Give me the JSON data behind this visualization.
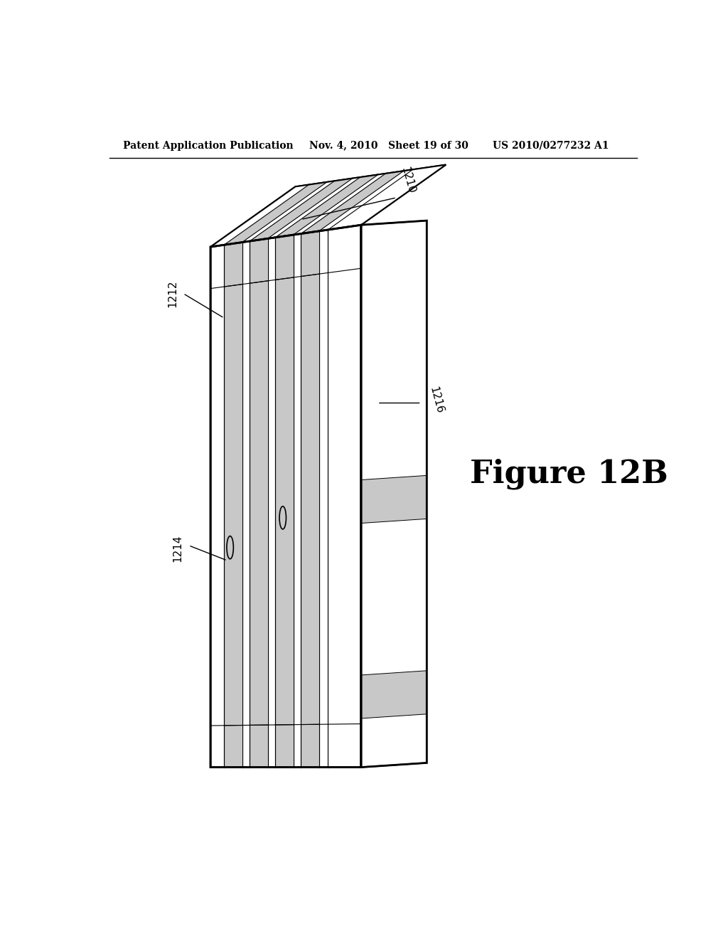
{
  "header_left": "Patent Application Publication",
  "header_mid": "Nov. 4, 2010   Sheet 19 of 30",
  "header_right": "US 2010/0277232 A1",
  "figure_label": "Figure 12B",
  "background_color": "#ffffff",
  "line_color": "#000000",
  "stripe_color": "#c8c8c8",
  "figure_label_fontsize": 32,
  "header_fontsize": 10
}
